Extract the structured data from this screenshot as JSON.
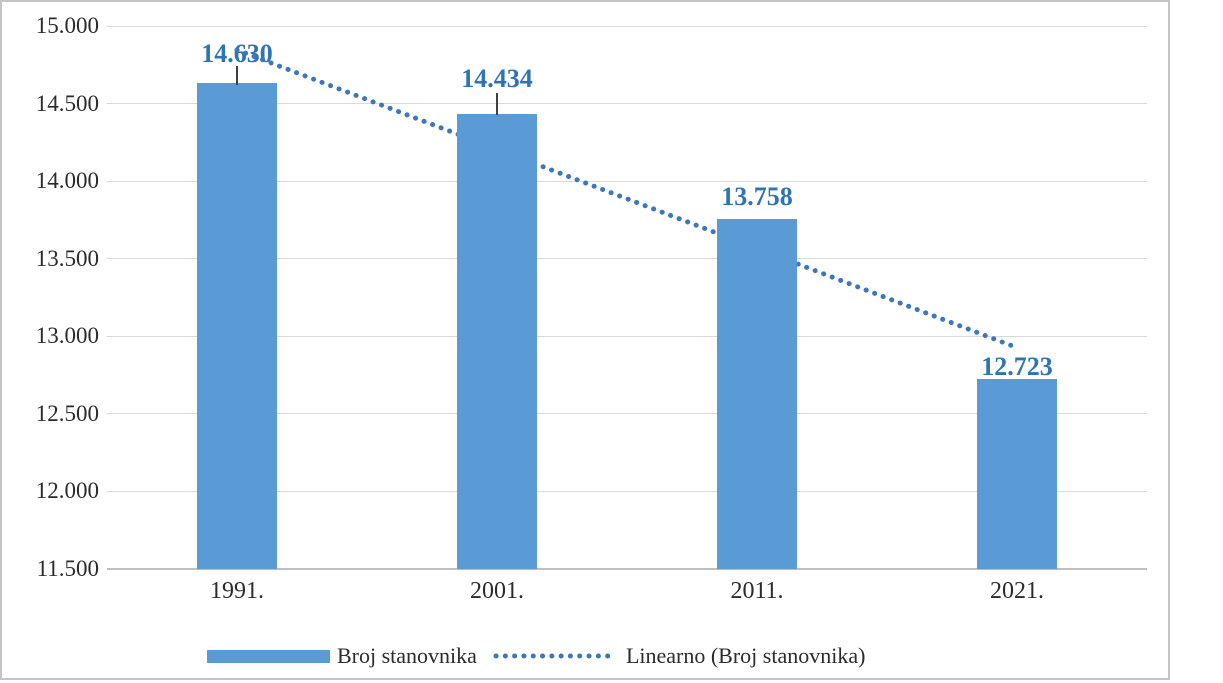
{
  "chart_data": {
    "type": "bar",
    "title": "",
    "xlabel": "",
    "ylabel": "",
    "categories": [
      "1991.",
      "2001.",
      "2011.",
      "2021."
    ],
    "series": [
      {
        "name": "Broj stanovnika",
        "type": "bar",
        "values": [
          14630,
          14434,
          13758,
          12723
        ],
        "labels": [
          "14.630",
          "14.434",
          "13.758",
          "12.723"
        ],
        "color": "#5b9bd5"
      },
      {
        "name": "Linearno (Broj stanovnika)",
        "type": "linear-trendline",
        "style": "dotted",
        "fitted_values": [
          14845.8,
          14206.1,
          13566.4,
          12926.7
        ],
        "color": "#3d76be"
      }
    ],
    "y_axis": {
      "min": 11500,
      "max": 15000,
      "step": 500,
      "ticks": [
        "15.000",
        "14.500",
        "14.000",
        "13.500",
        "13.000",
        "12.500",
        "12.000",
        "11.500"
      ],
      "tick_values": [
        15000,
        14500,
        14000,
        13500,
        13000,
        12500,
        12000,
        11500
      ],
      "grid": true
    },
    "legend_position": "bottom",
    "data_label_color": "#2e74b5",
    "gridline_color": "#d9d9d9",
    "axis_line_color": "#bfbfbf"
  },
  "legend": {
    "bar_label": "Broj stanovnika",
    "trend_label": "Linearno (Broj stanovnika)"
  }
}
